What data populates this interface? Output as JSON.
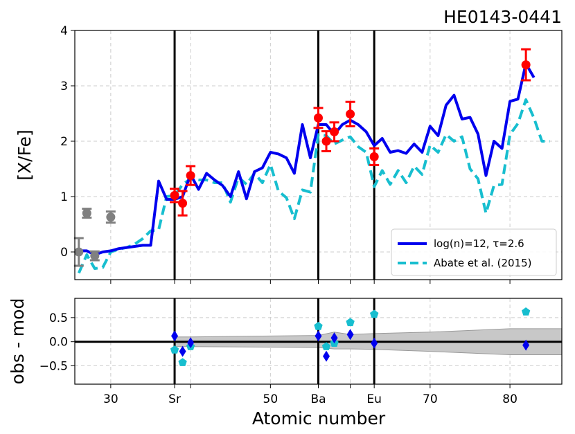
{
  "chart_data": [
    {
      "type": "line",
      "title": "HE0143-0441",
      "xlabel": "",
      "ylabel": "[X/Fe]",
      "xlim": [
        25.5,
        86.5
      ],
      "ylim": [
        -0.5,
        4
      ],
      "grid": true,
      "legend_position": "lower-right",
      "xticks": [
        30,
        38,
        40,
        50,
        56,
        60,
        63,
        70,
        80
      ],
      "xtick_labels": [
        "30",
        "Sr",
        "",
        "50",
        "Ba",
        "",
        "Eu",
        "70",
        "80"
      ],
      "yticks": [
        0,
        1,
        2,
        3,
        4
      ],
      "ytick_labels": [
        "0",
        "1",
        "2",
        "3",
        "4"
      ],
      "vlines": [
        38,
        56,
        63
      ],
      "series": [
        {
          "name": "log(n)=12, τ=2.6",
          "style": "solid",
          "color": "#0000ee",
          "x": [
            26,
            27,
            28,
            29,
            30,
            31,
            32,
            33,
            34,
            35,
            36,
            37,
            38,
            39,
            40,
            41,
            42,
            43,
            44,
            45,
            46,
            47,
            48,
            49,
            50,
            51,
            52,
            53,
            54,
            55,
            56,
            57,
            58,
            59,
            60,
            61,
            62,
            63,
            64,
            65,
            66,
            67,
            68,
            69,
            70,
            71,
            72,
            73,
            74,
            75,
            76,
            77,
            78,
            79,
            80,
            81,
            82,
            83
          ],
          "y": [
            0.02,
            0.02,
            -0.05,
            0.0,
            0.02,
            0.06,
            0.08,
            0.1,
            0.12,
            0.12,
            1.28,
            0.95,
            0.95,
            1.0,
            1.4,
            1.13,
            1.42,
            1.3,
            1.2,
            1.0,
            1.45,
            0.96,
            1.45,
            1.52,
            1.8,
            1.77,
            1.7,
            1.42,
            2.3,
            1.7,
            2.3,
            2.3,
            2.12,
            2.3,
            2.38,
            2.3,
            2.17,
            1.92,
            2.05,
            1.8,
            1.83,
            1.78,
            1.95,
            1.8,
            2.27,
            2.1,
            2.65,
            2.83,
            2.4,
            2.43,
            2.13,
            1.38,
            2.0,
            1.87,
            2.72,
            2.76,
            3.4,
            3.15
          ]
        },
        {
          "name": "Abate et al. (2015)",
          "style": "dashed",
          "color": "#17becf",
          "x": [
            26,
            27,
            28,
            29,
            30,
            31,
            32,
            33,
            34,
            35,
            36,
            37,
            38,
            39,
            40,
            41,
            42,
            43,
            44,
            45,
            46,
            47,
            48,
            49,
            50,
            51,
            52,
            53,
            54,
            55,
            56,
            57,
            58,
            59,
            60,
            61,
            62,
            63,
            64,
            65,
            66,
            67,
            68,
            69,
            70,
            71,
            72,
            73,
            74,
            75,
            76,
            77,
            78,
            79,
            80,
            81,
            82,
            83,
            84,
            85
          ],
          "y": [
            -0.38,
            -0.05,
            -0.3,
            -0.28,
            0.0,
            0.05,
            0.08,
            0.14,
            0.24,
            0.38,
            0.4,
            1.0,
            1.02,
            1.22,
            1.32,
            1.3,
            1.3,
            1.25,
            1.25,
            0.9,
            1.35,
            1.22,
            1.42,
            1.25,
            1.58,
            1.1,
            0.98,
            0.6,
            1.12,
            1.08,
            2.12,
            2.1,
            1.95,
            2.02,
            2.08,
            1.9,
            1.8,
            1.18,
            1.47,
            1.22,
            1.47,
            1.25,
            1.55,
            1.4,
            1.93,
            1.8,
            2.12,
            2.0,
            2.08,
            1.5,
            1.32,
            0.7,
            1.2,
            1.22,
            2.12,
            2.32,
            2.75,
            2.42,
            2.0,
            2.0
          ]
        }
      ],
      "observations": [
        {
          "x": 26,
          "y": 0.0,
          "err": 0.25,
          "color": "#808080"
        },
        {
          "x": 27,
          "y": 0.7,
          "err": 0.08,
          "color": "#808080"
        },
        {
          "x": 28,
          "y": -0.07,
          "err": 0.08,
          "color": "#808080"
        },
        {
          "x": 30,
          "y": 0.63,
          "err": 0.1,
          "color": "#808080"
        },
        {
          "x": 38,
          "y": 1.02,
          "err": 0.12,
          "color": "#ff0000"
        },
        {
          "x": 39,
          "y": 0.88,
          "err": 0.22,
          "color": "#ff0000"
        },
        {
          "x": 40,
          "y": 1.38,
          "err": 0.17,
          "color": "#ff0000"
        },
        {
          "x": 56,
          "y": 2.42,
          "err": 0.18,
          "color": "#ff0000"
        },
        {
          "x": 57,
          "y": 2.0,
          "err": 0.18,
          "color": "#ff0000"
        },
        {
          "x": 58,
          "y": 2.17,
          "err": 0.17,
          "color": "#ff0000"
        },
        {
          "x": 60,
          "y": 2.49,
          "err": 0.22,
          "color": "#ff0000"
        },
        {
          "x": 63,
          "y": 1.72,
          "err": 0.15,
          "color": "#ff0000"
        },
        {
          "x": 82,
          "y": 3.38,
          "err": 0.28,
          "color": "#ff0000"
        }
      ]
    },
    {
      "type": "scatter",
      "title": "",
      "xlabel": "Atomic number",
      "ylabel": "obs - mod",
      "xlim": [
        25.5,
        86.5
      ],
      "ylim": [
        -0.88,
        0.9
      ],
      "grid": true,
      "hline": 0,
      "vlines": [
        38,
        56,
        63
      ],
      "xticks": [
        30,
        38,
        40,
        50,
        56,
        60,
        63,
        70,
        80
      ],
      "xtick_labels": [
        "30",
        "Sr",
        "",
        "50",
        "Ba",
        "",
        "Eu",
        "70",
        "80"
      ],
      "yticks": [
        0.5,
        0.0,
        -0.5
      ],
      "ytick_labels": [
        "0.5",
        "0.0",
        "−0.5"
      ],
      "band": {
        "x": [
          38,
          40,
          56,
          58,
          60,
          63,
          70,
          80,
          86.5
        ],
        "upper": [
          0.1,
          0.1,
          0.13,
          0.2,
          0.15,
          0.17,
          0.2,
          0.27,
          0.27
        ],
        "lower": [
          -0.1,
          -0.1,
          -0.12,
          -0.15,
          -0.15,
          -0.16,
          -0.2,
          -0.27,
          -0.27
        ],
        "color": "#c8c8c8"
      },
      "series": [
        {
          "name": "",
          "marker": "diamond",
          "color": "#0000ee",
          "x": [
            38,
            39,
            40,
            56,
            57,
            58,
            60,
            63,
            82
          ],
          "y": [
            0.12,
            -0.2,
            -0.02,
            0.12,
            -0.3,
            0.08,
            0.15,
            -0.03,
            -0.07
          ]
        },
        {
          "name": "",
          "marker": "pentagon",
          "color": "#17becf",
          "x": [
            38,
            39,
            40,
            56,
            57,
            58,
            60,
            63,
            82
          ],
          "y": [
            -0.17,
            -0.43,
            -0.1,
            0.32,
            -0.1,
            -0.03,
            0.4,
            0.57,
            0.62
          ]
        }
      ]
    }
  ]
}
